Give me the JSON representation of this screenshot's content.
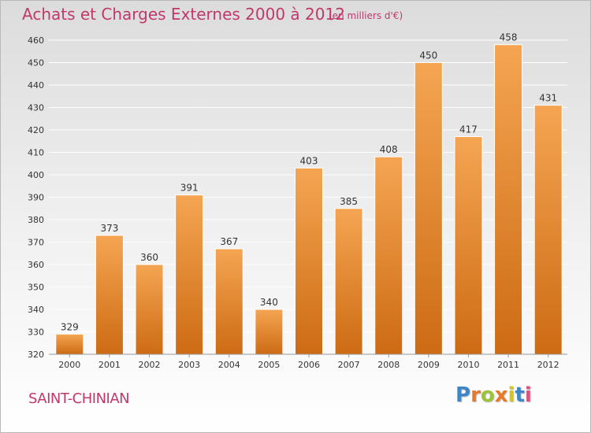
{
  "header": {
    "title": "Achats et Charges Externes 2000 à 2012",
    "subtitle": "(en milliers d'€)"
  },
  "footer": {
    "city": "SAINT-CHINIAN",
    "logo_letters": [
      "P",
      "r",
      "o",
      "x",
      "i",
      "t",
      "i"
    ],
    "logo_colors": [
      "#3f86c7",
      "#e8792a",
      "#9bc43a",
      "#e8792a",
      "#d6c326",
      "#3f86c7",
      "#e04f7f"
    ]
  },
  "colors": {
    "text_accent": "#c0396a",
    "bar_top": "#f5a552",
    "bar_bottom": "#cd6b14",
    "grid": "#ffffff",
    "axis_text": "#333333"
  },
  "chart_data": {
    "type": "bar",
    "categories": [
      "2000",
      "2001",
      "2002",
      "2003",
      "2004",
      "2005",
      "2006",
      "2007",
      "2008",
      "2009",
      "2010",
      "2011",
      "2012"
    ],
    "values": [
      329,
      373,
      360,
      391,
      367,
      340,
      403,
      385,
      408,
      450,
      417,
      458,
      431
    ],
    "title": "Achats et Charges Externes 2000 à 2012",
    "xlabel": "",
    "ylabel": "",
    "ylim": [
      320,
      460
    ],
    "yticks": [
      320,
      330,
      340,
      350,
      360,
      370,
      380,
      390,
      400,
      410,
      420,
      430,
      440,
      450,
      460
    ],
    "grid": true,
    "legend": "none"
  }
}
